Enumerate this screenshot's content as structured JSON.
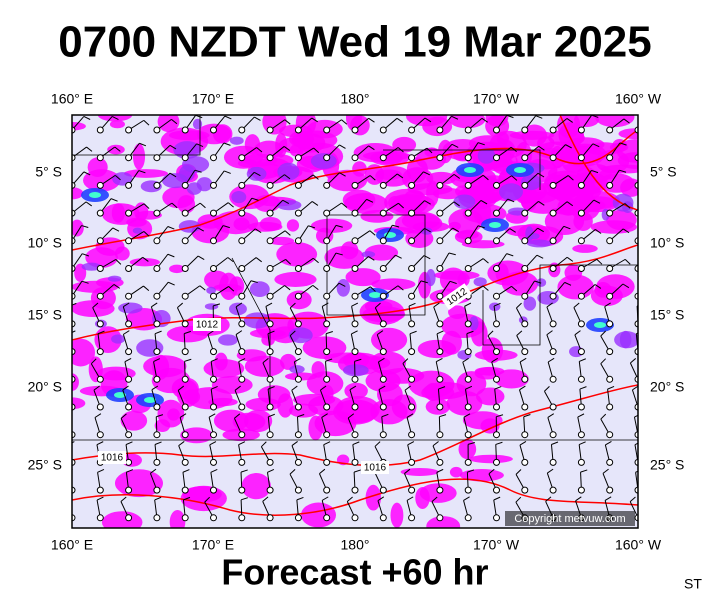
{
  "title": "0700 NZDT Wed 19 Mar 2025",
  "footer": "Forecast +60 hr",
  "corner_label": "ST",
  "copyright": "Copyright metvuw.com",
  "longitude_labels_top": [
    "160° E",
    "170° E",
    "180°",
    "170° W",
    "160° W"
  ],
  "longitude_labels_bottom": [
    "160° E",
    "170° E",
    "180°",
    "170° W",
    "160° W"
  ],
  "latitude_labels_left": [
    "5° S",
    "10° S",
    "15° S",
    "20° S",
    "25° S"
  ],
  "latitude_labels_right": [
    "5° S",
    "10° S",
    "15° S",
    "20° S",
    "25° S"
  ],
  "isobar_labels": [
    "1012",
    "1012",
    "1016",
    "1016"
  ]
}
